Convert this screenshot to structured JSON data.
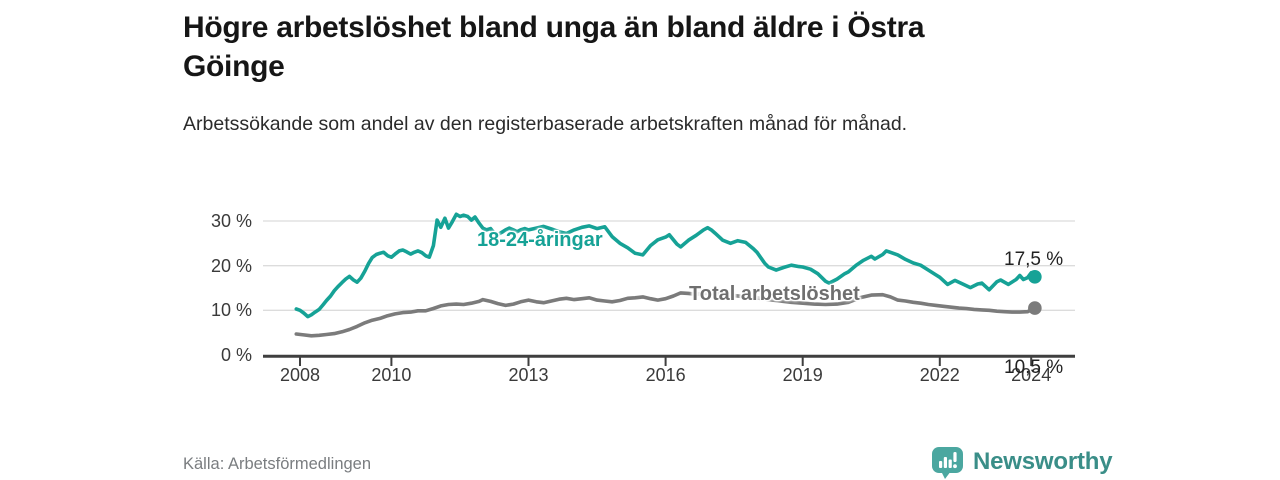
{
  "header": {
    "title": "Högre arbetslöshet bland unga än bland äldre i Östra Göinge",
    "subtitle": "Arbetssökande som andel av den registerbaserade arbetskraften månad för månad."
  },
  "footer": {
    "source": "Källa: Arbetsförmedlingen",
    "brand": "Newsworthy"
  },
  "colors": {
    "youth_line": "#16a296",
    "total_line": "#7b7b7b",
    "axis": "#3f3f3f",
    "grid": "#dcdcdc",
    "logo_bubble": "#4ba7a0",
    "brand_text": "#3a8e88"
  },
  "chart_data": {
    "type": "line",
    "title": "Högre arbetslöshet bland unga än bland äldre i Östra Göinge",
    "subtitle": "Arbetssökande som andel av den registerbaserade arbetskraften månad för månad.",
    "xlabel": "",
    "ylabel": "",
    "unit": "%",
    "grid": "horizontal-only",
    "legend_position": "inline-labels",
    "xlim": [
      2007.2,
      2025.0
    ],
    "ylim": [
      0,
      34.7
    ],
    "x_ticks": [
      2008,
      2010,
      2013,
      2016,
      2019,
      2022,
      2024
    ],
    "y_tick_values": [
      0,
      10,
      20,
      30
    ],
    "y_tick_labels": [
      "0 %",
      "10 %",
      "20 %",
      "30 %"
    ],
    "series": [
      {
        "name": "18-24-åringar",
        "color": "#16a296",
        "end_label": "17,5 %",
        "end_value": 17.5,
        "points": [
          [
            2007.92,
            10.3
          ],
          [
            2008.0,
            10.0
          ],
          [
            2008.08,
            9.4
          ],
          [
            2008.17,
            8.6
          ],
          [
            2008.25,
            9.0
          ],
          [
            2008.33,
            9.6
          ],
          [
            2008.42,
            10.2
          ],
          [
            2008.5,
            11.2
          ],
          [
            2008.58,
            12.2
          ],
          [
            2008.67,
            13.2
          ],
          [
            2008.75,
            14.4
          ],
          [
            2008.83,
            15.3
          ],
          [
            2008.92,
            16.2
          ],
          [
            2009.0,
            17.0
          ],
          [
            2009.08,
            17.6
          ],
          [
            2009.17,
            16.8
          ],
          [
            2009.25,
            16.3
          ],
          [
            2009.33,
            17.2
          ],
          [
            2009.42,
            18.8
          ],
          [
            2009.5,
            20.5
          ],
          [
            2009.58,
            21.8
          ],
          [
            2009.67,
            22.5
          ],
          [
            2009.75,
            22.8
          ],
          [
            2009.83,
            23.0
          ],
          [
            2009.92,
            22.2
          ],
          [
            2010.0,
            21.9
          ],
          [
            2010.08,
            22.6
          ],
          [
            2010.17,
            23.3
          ],
          [
            2010.25,
            23.5
          ],
          [
            2010.33,
            23.1
          ],
          [
            2010.42,
            22.6
          ],
          [
            2010.5,
            23.0
          ],
          [
            2010.58,
            23.3
          ],
          [
            2010.67,
            22.9
          ],
          [
            2010.75,
            22.2
          ],
          [
            2010.83,
            21.9
          ],
          [
            2010.92,
            24.5
          ],
          [
            2011.0,
            30.2
          ],
          [
            2011.08,
            28.6
          ],
          [
            2011.17,
            30.6
          ],
          [
            2011.25,
            28.4
          ],
          [
            2011.33,
            29.8
          ],
          [
            2011.42,
            31.5
          ],
          [
            2011.5,
            31.0
          ],
          [
            2011.58,
            31.3
          ],
          [
            2011.67,
            31.0
          ],
          [
            2011.75,
            30.2
          ],
          [
            2011.83,
            30.9
          ],
          [
            2011.92,
            29.5
          ],
          [
            2012.0,
            28.4
          ],
          [
            2012.08,
            28.0
          ],
          [
            2012.17,
            28.3
          ],
          [
            2012.25,
            27.3
          ],
          [
            2012.33,
            27.0
          ],
          [
            2012.42,
            27.5
          ],
          [
            2012.5,
            28.0
          ],
          [
            2012.58,
            28.4
          ],
          [
            2012.67,
            28.0
          ],
          [
            2012.75,
            27.6
          ],
          [
            2012.83,
            28.0
          ],
          [
            2012.92,
            28.3
          ],
          [
            2013.0,
            28.0
          ],
          [
            2013.17,
            28.4
          ],
          [
            2013.33,
            28.8
          ],
          [
            2013.5,
            28.2
          ],
          [
            2013.67,
            27.6
          ],
          [
            2013.83,
            27.2
          ],
          [
            2014.0,
            28.0
          ],
          [
            2014.17,
            28.6
          ],
          [
            2014.33,
            28.9
          ],
          [
            2014.5,
            28.3
          ],
          [
            2014.67,
            28.7
          ],
          [
            2014.83,
            26.5
          ],
          [
            2015.0,
            25.0
          ],
          [
            2015.17,
            24.0
          ],
          [
            2015.33,
            22.8
          ],
          [
            2015.5,
            22.4
          ],
          [
            2015.67,
            24.5
          ],
          [
            2015.83,
            25.8
          ],
          [
            2016.0,
            26.4
          ],
          [
            2016.08,
            26.9
          ],
          [
            2016.25,
            24.8
          ],
          [
            2016.33,
            24.2
          ],
          [
            2016.5,
            25.7
          ],
          [
            2016.67,
            26.8
          ],
          [
            2016.83,
            28.0
          ],
          [
            2016.92,
            28.5
          ],
          [
            2017.0,
            28.0
          ],
          [
            2017.08,
            27.3
          ],
          [
            2017.25,
            25.7
          ],
          [
            2017.42,
            25.0
          ],
          [
            2017.58,
            25.6
          ],
          [
            2017.75,
            25.2
          ],
          [
            2017.92,
            23.8
          ],
          [
            2018.0,
            23.0
          ],
          [
            2018.17,
            20.5
          ],
          [
            2018.25,
            19.7
          ],
          [
            2018.42,
            19.0
          ],
          [
            2018.58,
            19.6
          ],
          [
            2018.75,
            20.1
          ],
          [
            2018.92,
            19.8
          ],
          [
            2019.0,
            19.7
          ],
          [
            2019.17,
            19.2
          ],
          [
            2019.33,
            18.2
          ],
          [
            2019.5,
            16.5
          ],
          [
            2019.58,
            16.1
          ],
          [
            2019.75,
            17.0
          ],
          [
            2019.92,
            18.2
          ],
          [
            2020.0,
            18.6
          ],
          [
            2020.17,
            20.1
          ],
          [
            2020.33,
            21.2
          ],
          [
            2020.5,
            22.1
          ],
          [
            2020.58,
            21.5
          ],
          [
            2020.75,
            22.5
          ],
          [
            2020.83,
            23.3
          ],
          [
            2020.92,
            23.0
          ],
          [
            2021.08,
            22.4
          ],
          [
            2021.25,
            21.4
          ],
          [
            2021.42,
            20.6
          ],
          [
            2021.58,
            20.1
          ],
          [
            2021.75,
            19.0
          ],
          [
            2021.92,
            17.9
          ],
          [
            2022.0,
            17.4
          ],
          [
            2022.17,
            15.8
          ],
          [
            2022.33,
            16.7
          ],
          [
            2022.5,
            15.9
          ],
          [
            2022.67,
            15.1
          ],
          [
            2022.83,
            15.9
          ],
          [
            2022.92,
            16.1
          ],
          [
            2023.08,
            14.6
          ],
          [
            2023.25,
            16.4
          ],
          [
            2023.33,
            16.8
          ],
          [
            2023.5,
            15.8
          ],
          [
            2023.67,
            16.9
          ],
          [
            2023.75,
            17.8
          ],
          [
            2023.83,
            16.9
          ],
          [
            2023.92,
            17.3
          ],
          [
            2024.0,
            18.4
          ],
          [
            2024.08,
            17.5
          ]
        ]
      },
      {
        "name": "Total arbetslöshet",
        "color": "#7b7b7b",
        "end_label": "10,5 %",
        "end_value": 10.5,
        "points": [
          [
            2007.92,
            4.7
          ],
          [
            2008.08,
            4.5
          ],
          [
            2008.25,
            4.3
          ],
          [
            2008.42,
            4.4
          ],
          [
            2008.58,
            4.6
          ],
          [
            2008.75,
            4.8
          ],
          [
            2008.92,
            5.2
          ],
          [
            2009.08,
            5.7
          ],
          [
            2009.25,
            6.4
          ],
          [
            2009.42,
            7.2
          ],
          [
            2009.58,
            7.8
          ],
          [
            2009.75,
            8.2
          ],
          [
            2009.92,
            8.8
          ],
          [
            2010.08,
            9.2
          ],
          [
            2010.25,
            9.5
          ],
          [
            2010.42,
            9.6
          ],
          [
            2010.58,
            9.9
          ],
          [
            2010.75,
            9.9
          ],
          [
            2010.92,
            10.4
          ],
          [
            2011.08,
            11.0
          ],
          [
            2011.25,
            11.3
          ],
          [
            2011.42,
            11.4
          ],
          [
            2011.58,
            11.3
          ],
          [
            2011.75,
            11.6
          ],
          [
            2011.92,
            12.0
          ],
          [
            2012.0,
            12.4
          ],
          [
            2012.17,
            12.0
          ],
          [
            2012.33,
            11.5
          ],
          [
            2012.5,
            11.1
          ],
          [
            2012.67,
            11.4
          ],
          [
            2012.83,
            11.9
          ],
          [
            2013.0,
            12.3
          ],
          [
            2013.17,
            11.9
          ],
          [
            2013.33,
            11.7
          ],
          [
            2013.5,
            12.1
          ],
          [
            2013.67,
            12.5
          ],
          [
            2013.83,
            12.7
          ],
          [
            2014.0,
            12.4
          ],
          [
            2014.17,
            12.6
          ],
          [
            2014.33,
            12.8
          ],
          [
            2014.5,
            12.3
          ],
          [
            2014.67,
            12.1
          ],
          [
            2014.83,
            11.9
          ],
          [
            2015.0,
            12.2
          ],
          [
            2015.17,
            12.7
          ],
          [
            2015.33,
            12.8
          ],
          [
            2015.5,
            13.0
          ],
          [
            2015.67,
            12.6
          ],
          [
            2015.83,
            12.3
          ],
          [
            2016.0,
            12.6
          ],
          [
            2016.17,
            13.2
          ],
          [
            2016.33,
            13.9
          ],
          [
            2016.5,
            13.8
          ],
          [
            2016.67,
            13.6
          ],
          [
            2016.83,
            13.8
          ],
          [
            2017.0,
            13.9
          ],
          [
            2017.25,
            13.6
          ],
          [
            2017.5,
            13.3
          ],
          [
            2017.75,
            13.0
          ],
          [
            2018.0,
            12.8
          ],
          [
            2018.25,
            12.4
          ],
          [
            2018.5,
            12.1
          ],
          [
            2018.75,
            11.8
          ],
          [
            2019.0,
            11.6
          ],
          [
            2019.25,
            11.4
          ],
          [
            2019.5,
            11.3
          ],
          [
            2019.75,
            11.4
          ],
          [
            2020.0,
            11.8
          ],
          [
            2020.25,
            12.8
          ],
          [
            2020.5,
            13.4
          ],
          [
            2020.75,
            13.5
          ],
          [
            2020.92,
            13.0
          ],
          [
            2021.08,
            12.3
          ],
          [
            2021.25,
            12.1
          ],
          [
            2021.42,
            11.8
          ],
          [
            2021.58,
            11.6
          ],
          [
            2021.75,
            11.3
          ],
          [
            2021.92,
            11.1
          ],
          [
            2022.08,
            10.9
          ],
          [
            2022.25,
            10.7
          ],
          [
            2022.42,
            10.5
          ],
          [
            2022.58,
            10.4
          ],
          [
            2022.75,
            10.2
          ],
          [
            2022.92,
            10.1
          ],
          [
            2023.08,
            10.0
          ],
          [
            2023.25,
            9.8
          ],
          [
            2023.42,
            9.7
          ],
          [
            2023.58,
            9.6
          ],
          [
            2023.75,
            9.6
          ],
          [
            2023.92,
            9.7
          ],
          [
            2024.0,
            10.1
          ],
          [
            2024.08,
            10.5
          ]
        ]
      }
    ]
  }
}
